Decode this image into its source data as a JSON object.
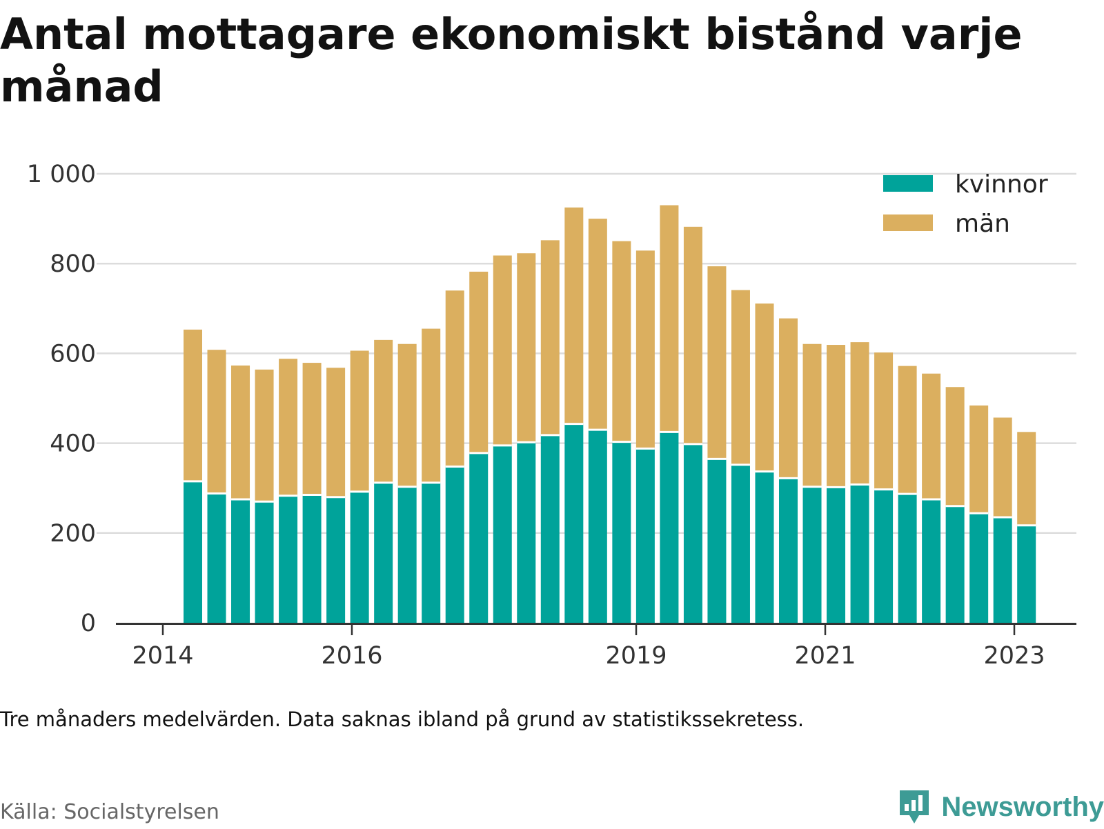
{
  "title": "Antal mottagare ekonomiskt bistånd varje månad",
  "note": "Tre månaders medelvärden. Data saknas ibland på grund av statistikssekretess.",
  "source": "Källa: Socialstyrelsen",
  "brand": {
    "name": "Newsworthy",
    "icon": "bar-chart-speech-icon",
    "color": "#3d9b95"
  },
  "colors": {
    "kvinnor": "#00a39a",
    "man": "#dbaf5f",
    "grid": "#dcdcdc",
    "axis": "#333333"
  },
  "chart_data": {
    "type": "bar",
    "stacked": true,
    "title": "Antal mottagare ekonomiskt bistånd varje månad",
    "xlabel": "",
    "ylabel": "",
    "ylim": [
      0,
      1000
    ],
    "yticks": [
      0,
      200,
      400,
      600,
      800,
      1000
    ],
    "ytick_labels": [
      "0",
      "200",
      "400",
      "600",
      "800",
      "1 000"
    ],
    "xticks": [
      "2014",
      "2016",
      "2019",
      "2021",
      "2023"
    ],
    "legend_position": "top-right",
    "grid": true,
    "periods": [
      "2014-Q2",
      "2014-Q3",
      "2014-Q4",
      "2015-Q1",
      "2015-Q2",
      "2015-Q3",
      "2015-Q4",
      "2016-Q1",
      "2016-Q2",
      "2016-Q3",
      "2016-Q4",
      "2017-Q1",
      "2017-Q2",
      "2017-Q3",
      "2017-Q4",
      "2018-Q1",
      "2018-Q2",
      "2018-Q3",
      "2018-Q4",
      "2019-Q1",
      "2019-Q2",
      "2019-Q3",
      "2019-Q4",
      "2020-Q1",
      "2020-Q2",
      "2020-Q3",
      "2020-Q4",
      "2021-Q1",
      "2021-Q2",
      "2021-Q3",
      "2021-Q4",
      "2022-Q1",
      "2022-Q2",
      "2022-Q3",
      "2022-Q4",
      "2023-Q1"
    ],
    "series": [
      {
        "name": "kvinnor",
        "color": "#00a39a",
        "values": [
          315,
          288,
          275,
          270,
          283,
          285,
          280,
          292,
          312,
          303,
          312,
          348,
          378,
          395,
          402,
          418,
          443,
          430,
          403,
          388,
          425,
          398,
          365,
          352,
          337,
          322,
          303,
          302,
          308,
          297,
          287,
          275,
          260,
          244,
          235,
          217
        ]
      },
      {
        "name": "män",
        "color": "#dbaf5f",
        "values": [
          338,
          320,
          298,
          294,
          305,
          294,
          288,
          314,
          318,
          318,
          343,
          392,
          404,
          423,
          421,
          434,
          482,
          470,
          447,
          441,
          505,
          484,
          429,
          389,
          374,
          356,
          318,
          317,
          317,
          305,
          285,
          280,
          265,
          240,
          222,
          208
        ]
      }
    ]
  }
}
